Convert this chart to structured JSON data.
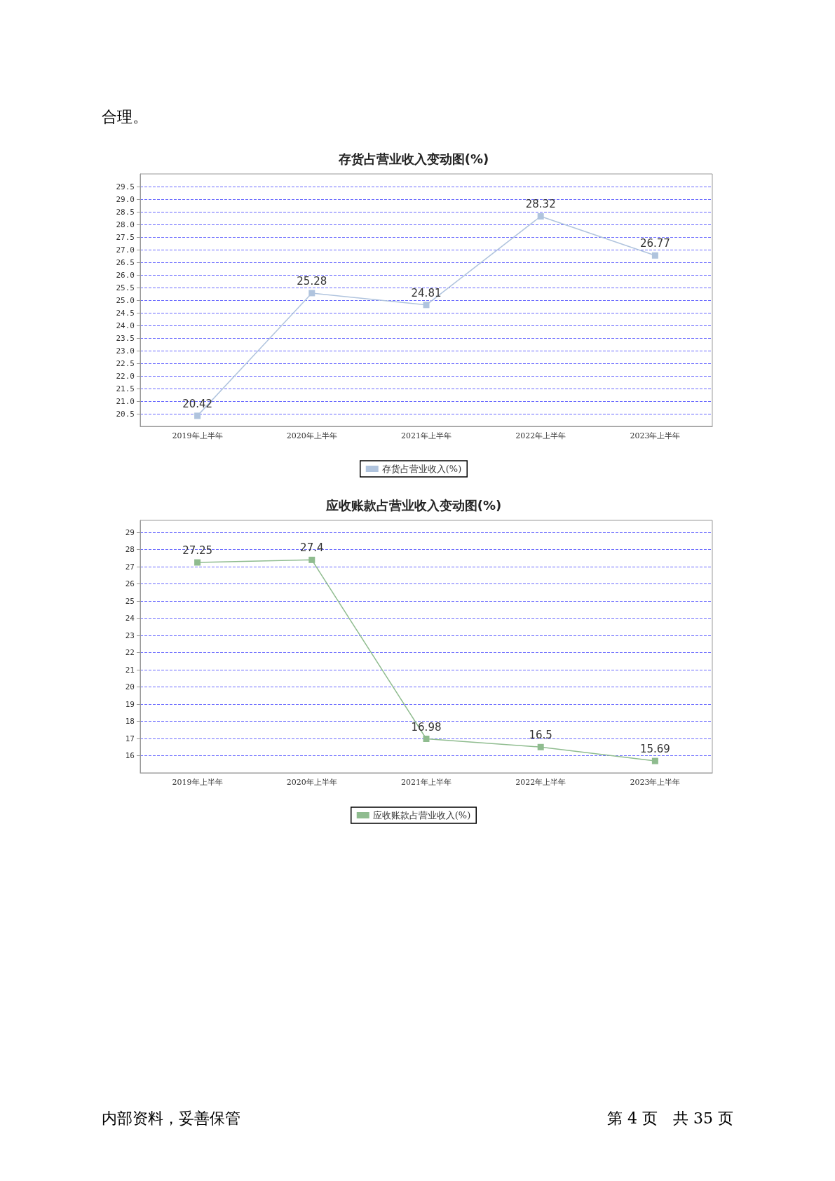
{
  "chart_data": [
    {
      "type": "line",
      "title": "存货占营业收入变动图(%)",
      "categories": [
        "2019年上半年",
        "2020年上半年",
        "2021年上半年",
        "2022年上半年",
        "2023年上半年"
      ],
      "series": [
        {
          "name": "存货占营业收入(%)",
          "color": "#b0c4de",
          "values": [
            20.42,
            25.28,
            24.81,
            28.32,
            26.77
          ]
        }
      ],
      "ylim": [
        20,
        30
      ],
      "yticks": [
        20.5,
        {
          "value": 21,
          "label": "21.0"
        },
        21.5,
        {
          "value": 22,
          "label": "22.0"
        },
        22.5,
        {
          "value": 23,
          "label": "23.0"
        },
        23.5,
        {
          "value": 24,
          "label": "24.0"
        },
        24.5,
        {
          "value": 25,
          "label": "25.0"
        },
        25.5,
        {
          "value": 26,
          "label": "26.0"
        },
        26.5,
        {
          "value": 27,
          "label": "27.0"
        },
        27.5,
        {
          "value": 28,
          "label": "28.0"
        },
        28.5,
        {
          "value": 29,
          "label": "29.0"
        },
        29.5
      ],
      "grid": "y",
      "legend": "bottom",
      "marker": "square",
      "line_style": "solid",
      "data_labels": true,
      "annotations": [
        "合理。"
      ]
    },
    {
      "type": "line",
      "title": "应收账款占营业收入变动图(%)",
      "categories": [
        "2019年上半年",
        "2020年上半年",
        "2021年上半年",
        "2022年上半年",
        "2023年上半年"
      ],
      "series": [
        {
          "name": "应收账款占营业收入(%)",
          "color": "#8fbc8f",
          "values": [
            27.25,
            27.4,
            16.98,
            16.5,
            15.69
          ]
        }
      ],
      "ylim": [
        15,
        29.7
      ],
      "yticks": [
        16,
        17,
        18,
        19,
        20,
        21,
        22,
        23,
        24,
        25,
        26,
        27,
        28,
        29
      ],
      "grid": "y",
      "legend": "bottom",
      "marker": "square",
      "line_style": "solid",
      "data_labels": true,
      "annotations": [
        "内部资料，妥善保管",
        "第 4 页　共 35 页"
      ]
    }
  ]
}
